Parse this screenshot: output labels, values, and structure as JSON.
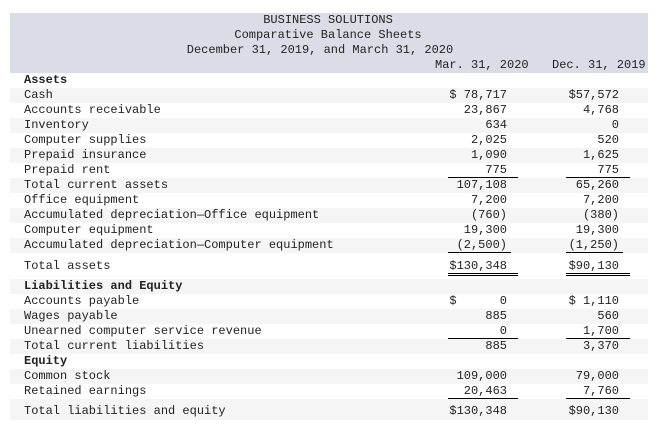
{
  "header": {
    "company": "BUSINESS SOLUTIONS",
    "title": "Comparative Balance Sheets",
    "period": "December 31, 2019, and March 31, 2020",
    "col_mar": "Mar. 31, 2020",
    "col_dec": "Dec. 31, 2019"
  },
  "rows": [
    {
      "label": "Assets",
      "bold": true,
      "mar": "",
      "dec": ""
    },
    {
      "label": "Cash",
      "mar": "$ 78,717",
      "dec": "$57,572"
    },
    {
      "label": "Accounts receivable",
      "mar": "23,867",
      "dec": "4,768"
    },
    {
      "label": "Inventory",
      "mar": "634",
      "dec": "0"
    },
    {
      "label": "Computer supplies",
      "mar": "2,025",
      "dec": "520"
    },
    {
      "label": "Prepaid insurance",
      "mar": "1,090",
      "dec": "1,625"
    },
    {
      "label": "Prepaid rent",
      "mar": "775",
      "dec": "775",
      "line": "single"
    },
    {
      "label": "Total current assets",
      "mar": "107,108",
      "dec": "65,260"
    },
    {
      "label": "Office equipment",
      "mar": "7,200",
      "dec": "7,200"
    },
    {
      "label": "Accumulated depreciation—Office equipment",
      "mar": "(760)",
      "dec": "(380)"
    },
    {
      "label": "Computer equipment",
      "mar": "19,300",
      "dec": "19,300"
    },
    {
      "label": "Accumulated depreciation—Computer equipment",
      "mar": "(2,500)",
      "dec": "(1,250)",
      "line": "single"
    },
    {
      "label": "Total assets",
      "mar": "$130,348",
      "dec": "$90,130",
      "line": "double",
      "kind": "tall"
    },
    {
      "label": "Liabilities and Equity",
      "bold": true,
      "mar": "",
      "dec": ""
    },
    {
      "label": "Accounts payable",
      "mar": "$      0",
      "dec": "$ 1,110"
    },
    {
      "label": "Wages payable",
      "mar": "885",
      "dec": "560"
    },
    {
      "label": "Unearned computer service revenue",
      "mar": "0",
      "dec": "1,700",
      "line": "single"
    },
    {
      "label": "Total current liabilities",
      "mar": "885",
      "dec": "3,370"
    },
    {
      "label": "Equity",
      "bold": true,
      "mar": "",
      "dec": ""
    },
    {
      "label": "Common stock",
      "mar": "109,000",
      "dec": "79,000"
    },
    {
      "label": "Retained earnings",
      "mar": "20,463",
      "dec": "7,760",
      "line": "single"
    },
    {
      "label": "Total liabilities and equity",
      "mar": "$130,348",
      "dec": "$90,130",
      "kind": "tle"
    }
  ]
}
